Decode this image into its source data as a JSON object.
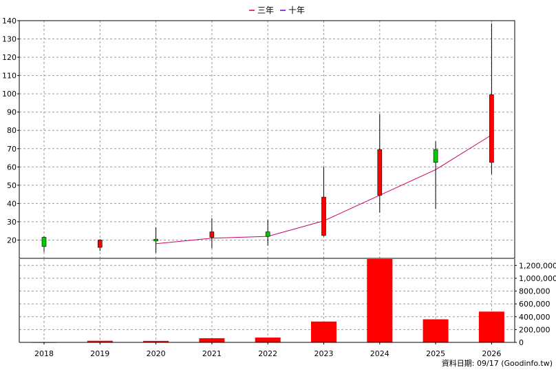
{
  "chart_data": {
    "type": "candlestick",
    "categories": [
      "2018",
      "2019",
      "2020",
      "2021",
      "2022",
      "2023",
      "2024",
      "2025",
      "2026"
    ],
    "legend": [
      {
        "label": "三年",
        "color": "#cc0066"
      },
      {
        "label": "十年",
        "color": "#6600cc"
      }
    ],
    "price_axis": {
      "min": 10,
      "max": 140,
      "ticks": [
        20,
        30,
        40,
        50,
        60,
        70,
        80,
        90,
        100,
        110,
        120,
        130,
        140
      ]
    },
    "volume_axis": {
      "min": 0,
      "max": 1300000,
      "ticks": [
        0,
        200000,
        400000,
        600000,
        800000,
        1000000,
        1200000
      ],
      "tick_labels": [
        "0",
        "200,000",
        "400,000",
        "600,000",
        "800,000",
        "1,000,000",
        "1,200,000"
      ]
    },
    "candles": [
      {
        "year": "2018",
        "open": 16.5,
        "close": 21.5,
        "high": 22.0,
        "low": 13.5
      },
      {
        "year": "2019",
        "open": 20.0,
        "close": 16.0,
        "high": 20.5,
        "low": 14.0
      },
      {
        "year": "2020",
        "open": 19.5,
        "close": 20.5,
        "high": 27.0,
        "low": 13.0
      },
      {
        "year": "2021",
        "open": 24.5,
        "close": 21.5,
        "high": 32.0,
        "low": 15.5
      },
      {
        "year": "2022",
        "open": 22.0,
        "close": 24.5,
        "high": 31.0,
        "low": 17.0
      },
      {
        "year": "2023",
        "open": 43.5,
        "close": 22.5,
        "high": 60.0,
        "low": 22.0
      },
      {
        "year": "2024",
        "open": 69.5,
        "close": 44.5,
        "high": 89.0,
        "low": 35.0
      },
      {
        "year": "2025",
        "open": 62.5,
        "close": 69.5,
        "high": 74.0,
        "low": 37.0
      },
      {
        "year": "2026",
        "open": 99.5,
        "close": 62.5,
        "high": 138.5,
        "low": 56.0
      }
    ],
    "series": [
      {
        "name": "三年",
        "color": "#cc0066",
        "values": [
          null,
          null,
          18.0,
          21.0,
          22.0,
          30.5,
          44.5,
          58.5,
          77.5
        ]
      }
    ],
    "volume": [
      4000,
      25000,
      23000,
      65000,
      75000,
      325000,
      1300000,
      360000,
      480000
    ],
    "colors": {
      "up": "#00cc00",
      "down": "#ff0000",
      "volume": "#ff0000",
      "wick": "#000000",
      "grid": "#999999"
    }
  },
  "footer": "資料日期: 09/17  (Goodinfo.tw)"
}
